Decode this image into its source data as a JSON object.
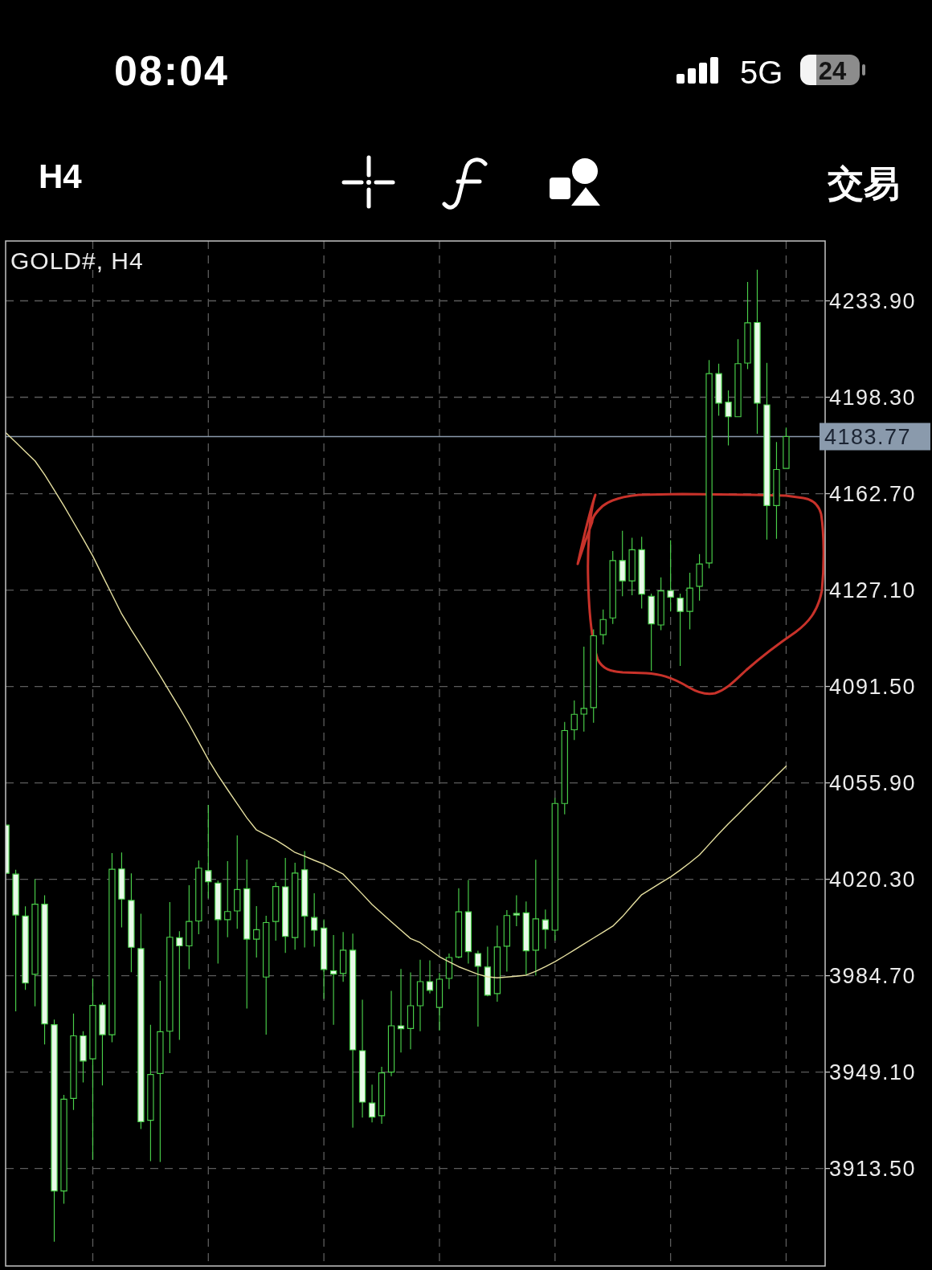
{
  "chart_data": {
    "type": "candlestick",
    "title": "GOLD#, H4",
    "categories": [
      null,
      null,
      null,
      null,
      null,
      null,
      null,
      null,
      null,
      null,
      null,
      null,
      null,
      null,
      null,
      null,
      null,
      null,
      null,
      null,
      null,
      null,
      null,
      null,
      null,
      null,
      null,
      null,
      null,
      null,
      null,
      null,
      null,
      null,
      null,
      null,
      null,
      null,
      null,
      null,
      null,
      null,
      null,
      null,
      null,
      null,
      null,
      null,
      null,
      null,
      null,
      null,
      null,
      null,
      null,
      null,
      null,
      null,
      null,
      null,
      null,
      null,
      null,
      null,
      null,
      null,
      null,
      null,
      null,
      null,
      null,
      null,
      null,
      null,
      null,
      null,
      null,
      null,
      null,
      null,
      null,
      null
    ],
    "color": "#4ad04a",
    "ohlc": [
      [
        4040.3,
        4040.3,
        4022.5,
        4022.5
      ],
      [
        4022.2,
        4023.8,
        3971.5,
        4007.1
      ],
      [
        4006.7,
        4010.3,
        3979.5,
        3982.0
      ],
      [
        3985.2,
        4020.3,
        3973.4,
        4011.1
      ],
      [
        4011.1,
        4014.4,
        3959.3,
        3966.9
      ],
      [
        3966.6,
        3968.5,
        3886.5,
        3905.2
      ],
      [
        3905.2,
        3940.7,
        3900.5,
        3939.1
      ],
      [
        3939.4,
        3970.7,
        3935.1,
        3962.5
      ],
      [
        3962.5,
        3964.2,
        3945.3,
        3953.2
      ],
      [
        3954.0,
        3983.6,
        3916.7,
        3973.7
      ],
      [
        3973.9,
        3974.8,
        3944.2,
        3962.9
      ],
      [
        3962.9,
        4030.0,
        3960.1,
        4024.0
      ],
      [
        4024.1,
        4030.2,
        4002.5,
        4013.0
      ],
      [
        4012.5,
        4022.5,
        3986.0,
        3995.2
      ],
      [
        3994.7,
        4007.6,
        3928.1,
        3930.8
      ],
      [
        3931.3,
        3966.6,
        3916.2,
        3948.2
      ],
      [
        3948.6,
        3982.8,
        3915.9,
        3964.0
      ],
      [
        3964.2,
        4011.9,
        3956.1,
        3998.9
      ],
      [
        3998.7,
        4001.1,
        3961.0,
        3995.7
      ],
      [
        3995.7,
        4018.1,
        3987.1,
        4004.7
      ],
      [
        4004.9,
        4027.2,
        4000.0,
        4024.4
      ],
      [
        4023.5,
        4047.8,
        4013.3,
        4019.4
      ],
      [
        4018.9,
        4019.8,
        3989.2,
        4005.4
      ],
      [
        4005.4,
        4027.0,
        3998.9,
        4008.4
      ],
      [
        4008.6,
        4036.5,
        4002.0,
        4016.5
      ],
      [
        4016.8,
        4027.6,
        3972.6,
        3998.2
      ],
      [
        3998.2,
        4010.4,
        3991.4,
        4001.7
      ],
      [
        3984.2,
        4006.8,
        3962.9,
        4004.3
      ],
      [
        4004.7,
        4019.2,
        3997.6,
        4017.6
      ],
      [
        4017.5,
        4028.2,
        3993.1,
        3999.2
      ],
      [
        3998.8,
        4026.4,
        3994.3,
        4022.6
      ],
      [
        4023.8,
        4030.7,
        3995.1,
        4006.7
      ],
      [
        4006.2,
        4015.1,
        3995.4,
        4001.5
      ],
      [
        4002.3,
        4005.5,
        3976.1,
        3987.0
      ],
      [
        3986.5,
        3999.7,
        3966.6,
        3985.3
      ],
      [
        3985.5,
        4000.8,
        3982.4,
        3994.1
      ],
      [
        3994.1,
        4000.2,
        3928.6,
        3957.3
      ],
      [
        3957.0,
        3975.8,
        3932.3,
        3938.0
      ],
      [
        3937.7,
        3944.5,
        3930.5,
        3932.5
      ],
      [
        3933.0,
        3951.1,
        3930.0,
        3948.8
      ],
      [
        3949.1,
        3979.1,
        3947.6,
        3966.2
      ],
      [
        3966.2,
        3987.2,
        3956.3,
        3965.1
      ],
      [
        3965.2,
        3985.9,
        3957.5,
        3973.6
      ],
      [
        3973.6,
        3990.6,
        3964.2,
        3982.5
      ],
      [
        3982.5,
        3990.4,
        3978.1,
        3979.3
      ],
      [
        3973.0,
        3985.7,
        3964.4,
        3983.4
      ],
      [
        3983.7,
        3992.9,
        3979.8,
        3991.4
      ],
      [
        3991.6,
        4017.0,
        3991.1,
        4008.3
      ],
      [
        4008.3,
        4020.0,
        3989.2,
        3993.6
      ],
      [
        3992.9,
        3993.9,
        3965.9,
        3988.2
      ],
      [
        3987.9,
        3995.4,
        3977.1,
        3977.5
      ],
      [
        3978.1,
        4003.2,
        3975.1,
        3995.3
      ],
      [
        3995.6,
        4008.9,
        3986.2,
        4006.9
      ],
      [
        4007.7,
        4014.4,
        4003.0,
        4007.1
      ],
      [
        4007.9,
        4012.1,
        3985.0,
        3993.9
      ],
      [
        3994.1,
        4027.5,
        3984.7,
        4005.7
      ],
      [
        4005.3,
        4009.1,
        3994.6,
        4001.8
      ],
      [
        4001.5,
        4050.3,
        3997.6,
        4048.3
      ],
      [
        4048.3,
        4078.4,
        4044.3,
        4075.2
      ],
      [
        4075.5,
        4086.3,
        4071.7,
        4081.2
      ],
      [
        4081.3,
        4106.2,
        4074.8,
        4083.4
      ],
      [
        4083.7,
        4112.6,
        4078.1,
        4110.2
      ],
      [
        4110.6,
        4119.9,
        4107.0,
        4116.2
      ],
      [
        4116.8,
        4141.5,
        4114.6,
        4138.0
      ],
      [
        4138.0,
        4149.0,
        4124.8,
        4130.5
      ],
      [
        4130.5,
        4146.4,
        4125.2,
        4142.0
      ],
      [
        4142.0,
        4146.8,
        4120.3,
        4125.6
      ],
      [
        4124.8,
        4125.8,
        4097.3,
        4114.6
      ],
      [
        4114.2,
        4131.8,
        4112.3,
        4126.8
      ],
      [
        4126.9,
        4145.5,
        4119.2,
        4124.5
      ],
      [
        4124.1,
        4125.8,
        4099.1,
        4119.2
      ],
      [
        4119.2,
        4133.5,
        4112.6,
        4127.8
      ],
      [
        4128.5,
        4140.4,
        4123.2,
        4136.7
      ],
      [
        4137.1,
        4212.0,
        4135.1,
        4207.0
      ],
      [
        4207.0,
        4210.7,
        4191.5,
        4196.1
      ],
      [
        4196.5,
        4200.8,
        4180.5,
        4191.1
      ],
      [
        4191.1,
        4219.7,
        4191.1,
        4210.7
      ],
      [
        4210.9,
        4240.9,
        4208.7,
        4225.8
      ],
      [
        4225.9,
        4245.4,
        4184.8,
        4196.1
      ],
      [
        4195.5,
        4211.0,
        4145.7,
        4158.3
      ],
      [
        4158.3,
        4181.8,
        4146.0,
        4171.6
      ],
      [
        4172.0,
        4187.1,
        4172.0,
        4183.77
      ]
    ],
    "series": [
      {
        "type": "line",
        "color": "#e6e0a0",
        "values": [
          4185.1,
          4181.7,
          4178.2,
          4174.8,
          4169.7,
          4164.0,
          4158.2,
          4152.1,
          4146.0,
          4139.7,
          4132.5,
          4125.4,
          4118.3,
          4112.4,
          4106.8,
          4101.1,
          4095.4,
          4089.5,
          4083.6,
          4077.5,
          4071.0,
          4064.5,
          4058.7,
          4053.4,
          4048.2,
          4043.0,
          4038.5,
          4036.7,
          4034.8,
          4032.6,
          4030.2,
          4028.8,
          4027.3,
          4025.9,
          4024.0,
          4022.2,
          4018.5,
          4014.8,
          4011.0,
          4007.8,
          4004.6,
          4001.5,
          3998.4,
          3996.9,
          3994.3,
          3991.7,
          3989.8,
          3988.0,
          3986.6,
          3985.2,
          3984.3,
          3983.9,
          3984.2,
          3984.5,
          3984.9,
          3986.3,
          3988.0,
          3989.9,
          3992.0,
          3994.2,
          3996.4,
          3998.6,
          4000.8,
          4003.0,
          4006.5,
          4010.6,
          4014.6,
          4016.8,
          4019.0,
          4021.2,
          4023.7,
          4026.4,
          4029.3,
          4033.2,
          4037.1,
          4040.8,
          4044.3,
          4047.9,
          4051.4,
          4055.0,
          4058.6,
          4062.1
        ]
      }
    ],
    "ylim": [
      3877.5,
      4256.0
    ],
    "yticks": [
      {
        "value": 3913.5,
        "label": "3913.50"
      },
      {
        "value": 3949.1,
        "label": "3949.10"
      },
      {
        "value": 3984.7,
        "label": "3984.70"
      },
      {
        "value": 4020.3,
        "label": "4020.30"
      },
      {
        "value": 4055.9,
        "label": "4055.90"
      },
      {
        "value": 4091.5,
        "label": "4091.50"
      },
      {
        "value": 4127.1,
        "label": "4127.10"
      },
      {
        "value": 4162.7,
        "label": "4162.70"
      },
      {
        "value": 4198.3,
        "label": "4198.30"
      },
      {
        "value": 4233.9,
        "label": "4233.90"
      }
    ],
    "grid": true,
    "tick_labels": "y",
    "ref_lines": [
      {
        "axis": "y",
        "value": 4183.77,
        "label": "4183.77",
        "color": "#8a9aac"
      }
    ],
    "annotations": [
      "08:04",
      "5G",
      "24",
      "H4",
      "交易"
    ]
  }
}
